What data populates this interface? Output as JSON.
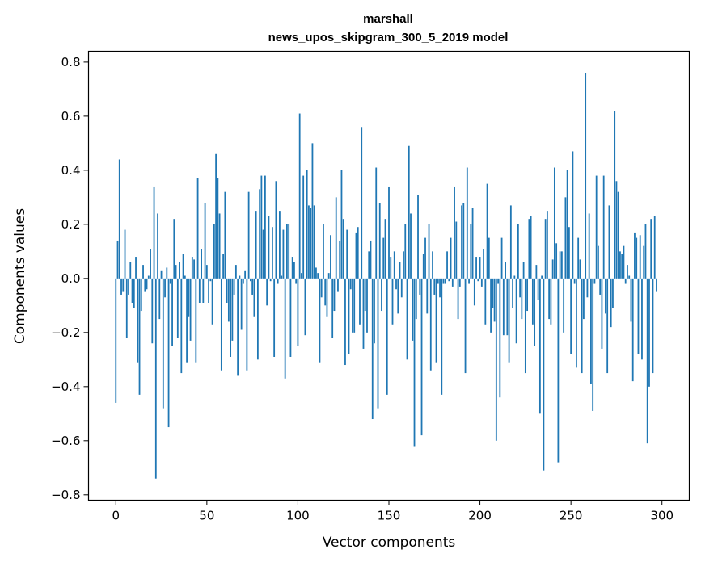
{
  "chart_data": {
    "type": "bar",
    "title_line1": "marshall",
    "title_line2": "news_upos_skipgram_300_5_2019 model",
    "xlabel": "Vector components",
    "ylabel": "Components values",
    "xlim": [
      -15,
      315
    ],
    "ylim": [
      -0.82,
      0.84
    ],
    "xticks": [
      0,
      50,
      100,
      150,
      200,
      250,
      300
    ],
    "xtick_labels": [
      "0",
      "50",
      "100",
      "150",
      "200",
      "250",
      "300"
    ],
    "yticks": [
      -0.8,
      -0.6,
      -0.4,
      -0.2,
      0.0,
      0.2,
      0.4,
      0.6,
      0.8
    ],
    "ytick_labels": [
      "−0.8",
      "−0.6",
      "−0.4",
      "−0.2",
      "0.0",
      "0.2",
      "0.4",
      "0.6",
      "0.8"
    ],
    "bar_color": "#1f77b4",
    "grid": false,
    "values": [
      -0.46,
      0.14,
      0.44,
      -0.06,
      -0.05,
      0.18,
      -0.22,
      -0.06,
      0.06,
      -0.09,
      -0.11,
      0.08,
      -0.31,
      -0.43,
      -0.12,
      0.05,
      -0.05,
      -0.04,
      0.01,
      0.11,
      -0.24,
      0.34,
      -0.74,
      0.24,
      -0.15,
      0.03,
      -0.48,
      -0.07,
      0.04,
      -0.55,
      -0.02,
      -0.25,
      0.22,
      0.05,
      -0.22,
      0.06,
      -0.35,
      0.09,
      0.01,
      -0.31,
      -0.14,
      -0.23,
      0.08,
      0.07,
      -0.31,
      0.37,
      -0.09,
      0.11,
      -0.09,
      0.28,
      0.05,
      -0.09,
      -0.01,
      -0.17,
      0.2,
      0.46,
      0.37,
      0.24,
      -0.34,
      0.09,
      0.32,
      -0.09,
      -0.16,
      -0.29,
      -0.23,
      -0.06,
      0.05,
      -0.36,
      0.01,
      -0.19,
      -0.02,
      0.03,
      -0.34,
      0.32,
      -0.01,
      -0.06,
      -0.14,
      0.25,
      -0.3,
      0.33,
      0.38,
      0.18,
      0.38,
      -0.1,
      0.23,
      -0.01,
      0.19,
      -0.29,
      0.36,
      -0.02,
      0.25,
      0.01,
      0.18,
      -0.37,
      0.2,
      0.2,
      -0.29,
      0.08,
      0.06,
      -0.02,
      -0.25,
      0.61,
      0.02,
      0.38,
      -0.21,
      0.4,
      0.27,
      0.26,
      0.5,
      0.27,
      0.04,
      0.02,
      -0.31,
      -0.07,
      0.2,
      -0.1,
      -0.14,
      0.02,
      0.16,
      -0.22,
      -0.12,
      0.3,
      -0.05,
      0.14,
      0.4,
      0.22,
      -0.32,
      0.18,
      -0.28,
      -0.04,
      -0.2,
      -0.2,
      0.17,
      0.19,
      -0.17,
      0.56,
      -0.26,
      -0.12,
      -0.2,
      0.1,
      0.14,
      -0.52,
      -0.24,
      0.41,
      -0.48,
      0.28,
      -0.12,
      0.15,
      0.22,
      -0.43,
      0.34,
      0.08,
      -0.17,
      0.1,
      -0.04,
      -0.13,
      0.06,
      -0.07,
      0.1,
      0.2,
      -0.3,
      0.49,
      0.24,
      -0.23,
      -0.62,
      -0.15,
      0.31,
      -0.06,
      -0.58,
      0.09,
      0.15,
      -0.13,
      0.2,
      -0.34,
      0.1,
      -0.06,
      -0.31,
      -0.02,
      -0.07,
      -0.43,
      -0.02,
      -0.02,
      0.1,
      -0.01,
      0.15,
      -0.03,
      0.34,
      0.21,
      -0.15,
      -0.03,
      0.27,
      0.28,
      -0.35,
      0.41,
      -0.02,
      0.2,
      0.26,
      -0.1,
      0.08,
      -0.01,
      0.08,
      -0.03,
      0.11,
      -0.17,
      0.35,
      0.15,
      -0.2,
      -0.11,
      -0.16,
      -0.6,
      -0.02,
      -0.44,
      0.15,
      -0.21,
      0.06,
      -0.21,
      -0.31,
      0.27,
      -0.11,
      0.01,
      -0.24,
      0.2,
      -0.07,
      -0.15,
      0.06,
      -0.35,
      -0.12,
      0.22,
      0.23,
      -0.17,
      -0.25,
      0.05,
      -0.08,
      -0.5,
      0.01,
      -0.71,
      0.22,
      0.25,
      -0.15,
      -0.17,
      0.07,
      0.41,
      0.13,
      -0.68,
      0.1,
      0.1,
      -0.2,
      0.3,
      0.4,
      0.19,
      -0.28,
      0.47,
      -0.02,
      -0.33,
      0.15,
      0.07,
      -0.35,
      -0.15,
      0.76,
      -0.07,
      0.24,
      -0.39,
      -0.49,
      -0.02,
      0.38,
      0.12,
      -0.06,
      -0.26,
      0.38,
      -0.13,
      -0.35,
      0.27,
      -0.18,
      -0.11,
      0.62,
      0.36,
      0.32,
      0.1,
      0.09,
      0.12,
      -0.02,
      0.05,
      0.01,
      -0.16,
      -0.38,
      0.17,
      0.15,
      -0.28,
      0.16,
      -0.3,
      0.12,
      0.2,
      -0.61,
      -0.4,
      0.22,
      -0.35,
      0.23,
      -0.05
    ]
  }
}
